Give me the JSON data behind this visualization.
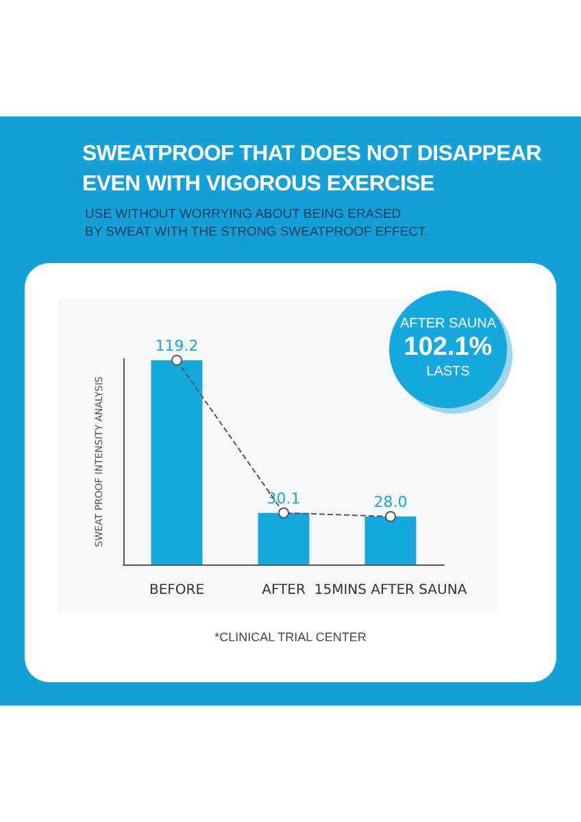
{
  "chart_data": {
    "type": "bar",
    "title": "SWEATPROOF THAT DOES NOT DISAPPEAR\nEVEN WITH VIGOROUS EXERCISE",
    "subtitle": "USE WITHOUT WORRYING ABOUT BEING ERASED\nBY SWEAT WITH THE STRONG SWEATPROOF EFFECT.",
    "ylabel": "SWEAT PROOF INTENSITY ANALYSIS",
    "categories": [
      "BEFORE",
      "AFTER",
      "15MINS AFTER SAUNA"
    ],
    "series": [
      {
        "color": "#14a8df",
        "values": [
          119.2,
          30.1,
          28.0
        ],
        "value_labels": [
          "119.2",
          "30.1",
          "28.0"
        ]
      },
      {
        "type": "line",
        "color": "#555555",
        "values": [
          119.2,
          30.1,
          28.0
        ],
        "marker": "circle",
        "line_style": "dashed"
      }
    ],
    "grid": false,
    "annotations": [
      "AFTER SAUNA\n102.1%\nLASTS",
      "*CLINICAL TRIAL CENTER"
    ]
  }
}
